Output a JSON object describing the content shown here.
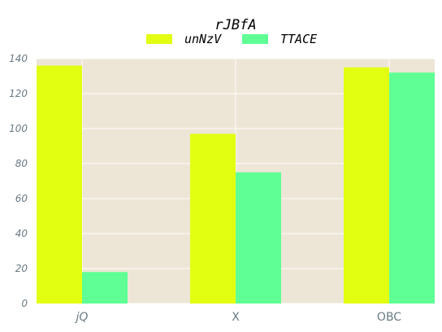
{
  "chart_data": {
    "type": "bar",
    "title": "rJBfA",
    "xlabel": "",
    "ylabel": "",
    "categories": [
      "jQ",
      "X",
      "OBC"
    ],
    "series": [
      {
        "name": "unNzV",
        "values": [
          136,
          97,
          135
        ],
        "color": "#e2ff12"
      },
      {
        "name": "TTACE",
        "values": [
          18,
          75,
          132
        ],
        "color": "#5fff95"
      }
    ],
    "ylim": [
      0,
      140
    ],
    "yticks": [
      "0",
      "20",
      "40",
      "60",
      "80",
      "100",
      "120",
      "140"
    ],
    "grid": true,
    "legend": "top-center",
    "background": "#ede6d6",
    "tick_color": "#6a7a84"
  }
}
